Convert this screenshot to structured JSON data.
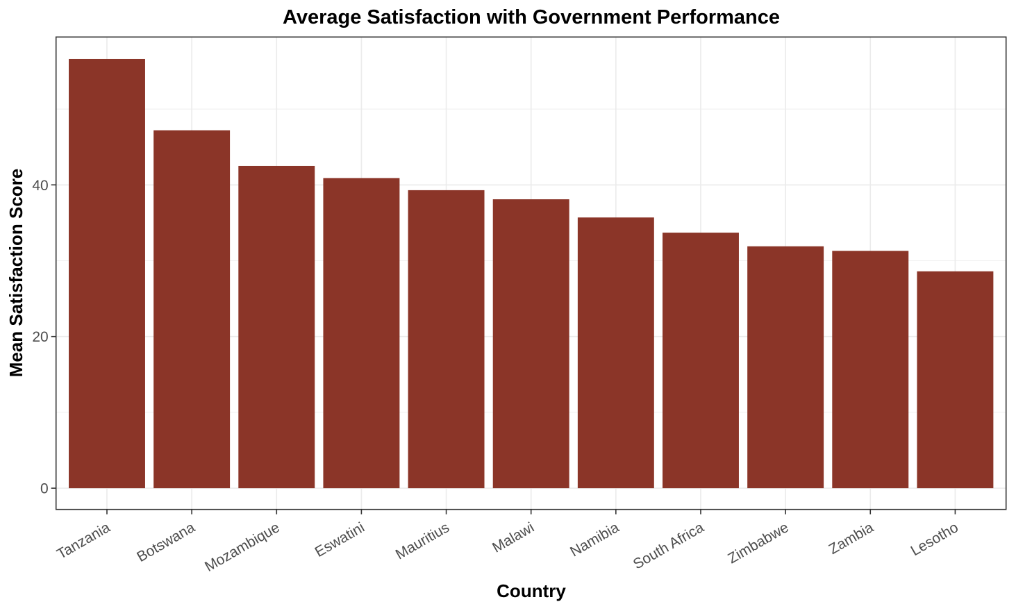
{
  "chart_data": {
    "type": "bar",
    "title": "Average Satisfaction with Government Performance",
    "xlabel": "Country",
    "ylabel": "Mean Satisfaction Score",
    "categories": [
      "Tanzania",
      "Botswana",
      "Mozambique",
      "Eswatini",
      "Mauritius",
      "Malawi",
      "Namibia",
      "South Africa",
      "Zimbabwe",
      "Zambia",
      "Lesotho"
    ],
    "values": [
      56.6,
      47.2,
      42.5,
      40.9,
      39.3,
      38.1,
      35.7,
      33.7,
      31.9,
      31.3,
      28.6
    ],
    "ylim": [
      -2.8,
      59.5
    ],
    "yticks": [
      0,
      20,
      40
    ],
    "ytick_labels": [
      "0",
      "20",
      "40"
    ],
    "yminor": [
      10,
      30,
      50
    ],
    "grid": true,
    "legend": "none",
    "bar_color": "#8B3528",
    "xtick_rotation_deg": -30
  }
}
